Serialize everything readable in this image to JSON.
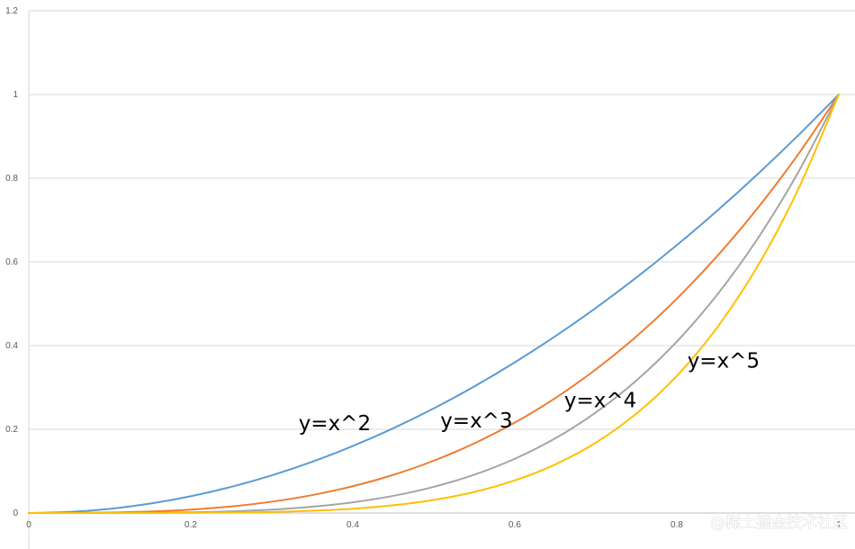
{
  "chart_data": {
    "type": "line",
    "title": "",
    "xlabel": "",
    "ylabel": "",
    "xlim": [
      0,
      1
    ],
    "ylim": [
      0,
      1.2
    ],
    "x_ticks": [
      "0",
      "0.2",
      "0.4",
      "0.6",
      "0.8",
      "1"
    ],
    "y_ticks": [
      "0",
      "0.2",
      "0.4",
      "0.6",
      "0.8",
      "1",
      "1.2"
    ],
    "grid": "horizontal",
    "legend": "none",
    "x": [
      0,
      0.05,
      0.1,
      0.15,
      0.2,
      0.25,
      0.3,
      0.35,
      0.4,
      0.45,
      0.5,
      0.55,
      0.6,
      0.65,
      0.7,
      0.75,
      0.8,
      0.85,
      0.9,
      0.95,
      1
    ],
    "series": [
      {
        "color": "#5b9bd5",
        "values": [
          0,
          0.0025,
          0.01,
          0.0225,
          0.04,
          0.0625,
          0.09,
          0.1225,
          0.16,
          0.2025,
          0.25,
          0.3025,
          0.36,
          0.4225,
          0.49,
          0.5625,
          0.64,
          0.7225,
          0.81,
          0.9025,
          1
        ]
      },
      {
        "color": "#ed7d31",
        "values": [
          0,
          0.000125,
          0.001,
          0.003375,
          0.008,
          0.015625,
          0.027,
          0.042875,
          0.064,
          0.091125,
          0.125,
          0.166375,
          0.216,
          0.274625,
          0.343,
          0.421875,
          0.512,
          0.614125,
          0.729,
          0.857375,
          1
        ]
      },
      {
        "color": "#a5a5a5",
        "values": [
          0,
          6.3e-06,
          0.0001,
          0.000506,
          0.0016,
          0.003906,
          0.0081,
          0.015006,
          0.0256,
          0.041006,
          0.0625,
          0.091506,
          0.1296,
          0.178506,
          0.2401,
          0.316406,
          0.4096,
          0.522006,
          0.6561,
          0.814506,
          1
        ]
      },
      {
        "color": "#ffc000",
        "values": [
          0,
          3e-07,
          1e-05,
          7.6e-05,
          0.00032,
          0.000977,
          0.00243,
          0.005252,
          0.01024,
          0.018453,
          0.03125,
          0.050328,
          0.07776,
          0.116029,
          0.16807,
          0.237305,
          0.32768,
          0.443705,
          0.59049,
          0.773781,
          1
        ]
      }
    ],
    "annotations": [
      {
        "text": "y=x^2",
        "x": 0.333,
        "y": 0.215
      },
      {
        "text": "y=x^3",
        "x": 0.508,
        "y": 0.222
      },
      {
        "text": "y=x^4",
        "x": 0.661,
        "y": 0.27
      },
      {
        "text": "y=x^5",
        "x": 0.813,
        "y": 0.365
      }
    ]
  },
  "watermark": "@稀土掘金技术社区"
}
